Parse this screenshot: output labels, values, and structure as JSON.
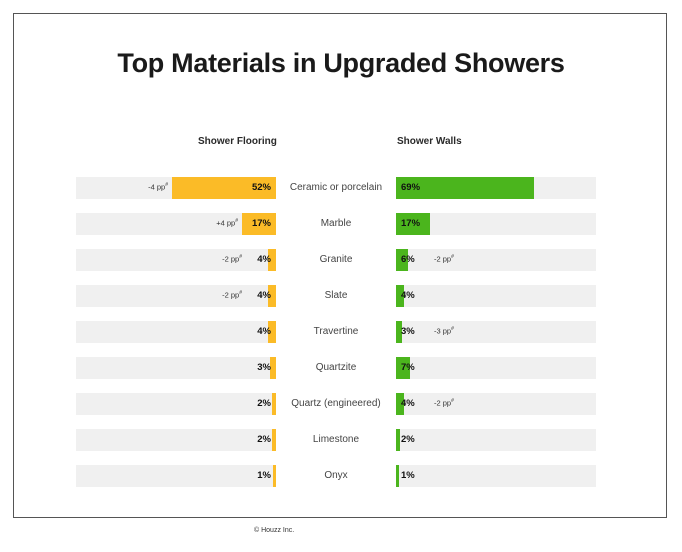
{
  "title": "Top Materials in Upgraded Showers",
  "footer": "© Houzz Inc.",
  "colors": {
    "flooring": "#fbbb27",
    "walls": "#4bb51d",
    "track": "#f0f0f0"
  },
  "chart_data": {
    "type": "bar",
    "orientation": "horizontal-butterfly",
    "categories": [
      "Ceramic or porcelain",
      "Marble",
      "Granite",
      "Slate",
      "Travertine",
      "Quartzite",
      "Quartz (engineered)",
      "Limestone",
      "Onyx"
    ],
    "xlim": [
      0,
      100
    ],
    "series": [
      {
        "name": "Shower Flooring",
        "values": [
          52,
          17,
          4,
          4,
          4,
          3,
          2,
          2,
          1
        ],
        "labels": [
          "52%",
          "17%",
          "4%",
          "4%",
          "4%",
          "3%",
          "2%",
          "2%",
          "1%"
        ],
        "changes": [
          "-4 pp",
          "+4 pp",
          "-2 pp",
          "-2 pp",
          "",
          "",
          "",
          "",
          ""
        ]
      },
      {
        "name": "Shower Walls",
        "values": [
          69,
          17,
          6,
          4,
          3,
          7,
          4,
          2,
          1
        ],
        "labels": [
          "69%",
          "17%",
          "6%",
          "4%",
          "3%",
          "7%",
          "4%",
          "2%",
          "1%"
        ],
        "changes": [
          "",
          "",
          "-2 pp",
          "",
          "-3 pp",
          "",
          "-2 pp",
          "",
          ""
        ]
      }
    ]
  }
}
